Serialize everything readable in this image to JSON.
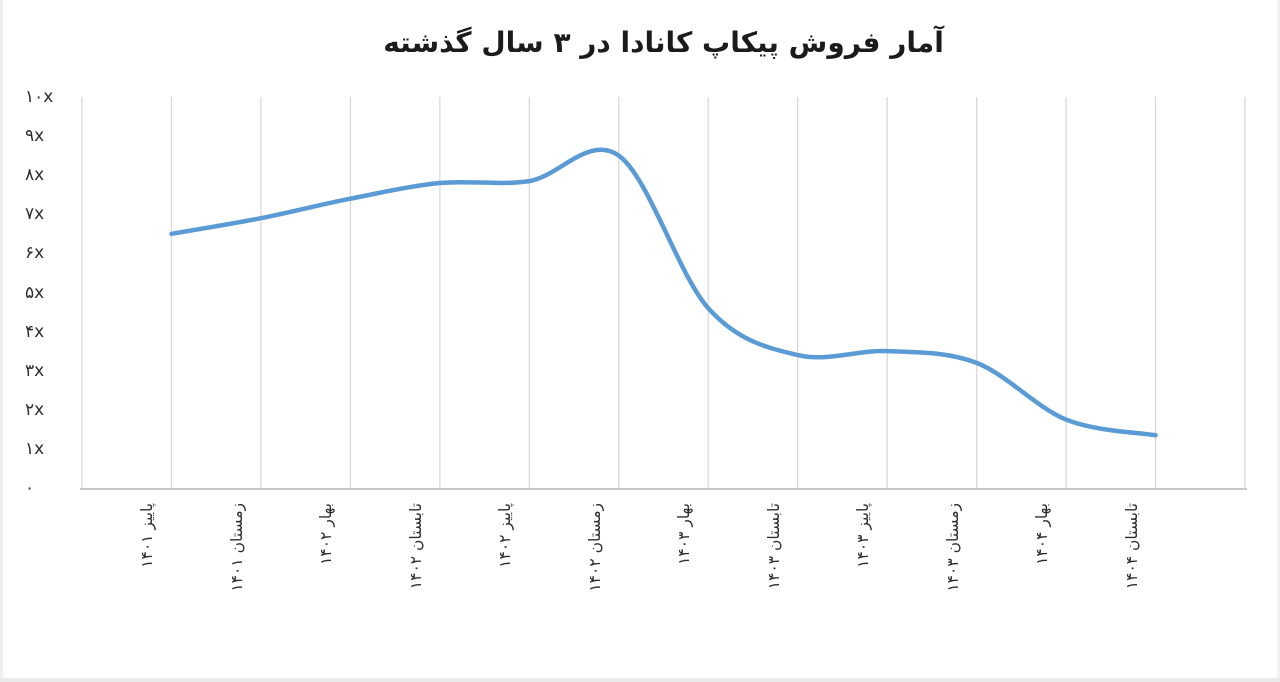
{
  "page": {
    "background_color": "#ffffff"
  },
  "chart_data": {
    "type": "line",
    "title": "آمار فروش پیکاپ کانادا در ۳ سال گذشته",
    "categories": [
      "پاییز ۱۴۰۱",
      "زمستان ۱۴۰۱",
      "بهار ۱۴۰۲",
      "تابستان ۱۴۰۲",
      "پاییز ۱۴۰۲",
      "زمستان ۱۴۰۲",
      "بهار ۱۴۰۳",
      "تابستان ۱۴۰۳",
      "پاییز ۱۴۰۳",
      "زمستان ۱۴۰۳",
      "بهار ۱۴۰۴",
      "تابستان ۱۴۰۴"
    ],
    "values": [
      6.5,
      6.9,
      7.4,
      7.8,
      7.85,
      8.5,
      4.6,
      3.4,
      3.5,
      3.2,
      1.75,
      1.35
    ],
    "y_ticks": [
      {
        "label": "۱۰x",
        "value": 10
      },
      {
        "label": "۹x",
        "value": 9
      },
      {
        "label": "۸x",
        "value": 8
      },
      {
        "label": "۷x",
        "value": 7
      },
      {
        "label": "۶x",
        "value": 6
      },
      {
        "label": "۵x",
        "value": 5
      },
      {
        "label": "۴x",
        "value": 4
      },
      {
        "label": "۳x",
        "value": 3
      },
      {
        "label": "۲x",
        "value": 2
      },
      {
        "label": "۱x",
        "value": 1
      },
      {
        "label": "۰",
        "value": 0
      }
    ],
    "ylim": [
      0,
      10
    ],
    "xlabel": "",
    "ylabel": "",
    "legend": "none",
    "grid": "vertical-only",
    "smooth": true,
    "line_color": "#5B9BD5",
    "gridline_color": "#d7d7d7",
    "axis_line_color": "#c9c9c9",
    "text_color": "#2e2e2e",
    "title_color": "#1b1b1b"
  }
}
